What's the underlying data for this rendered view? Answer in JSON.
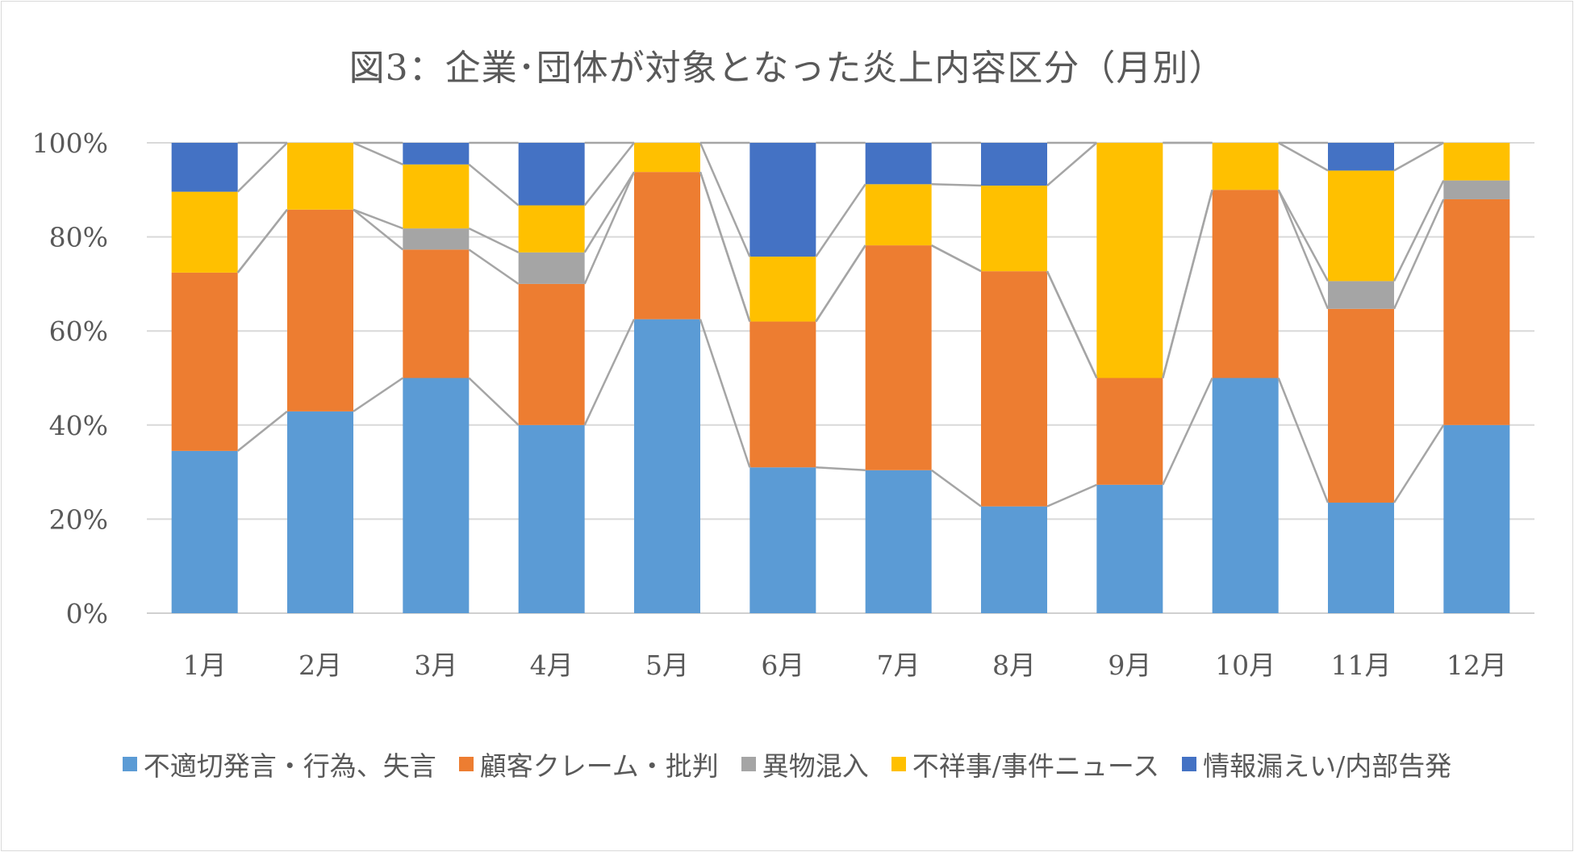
{
  "chart_data": {
    "type": "bar",
    "stacked": "percent",
    "title": "図3：企業･団体が対象となった炎上内容区分（月別）",
    "categories": [
      "1月",
      "2月",
      "3月",
      "4月",
      "5月",
      "6月",
      "7月",
      "8月",
      "9月",
      "10月",
      "11月",
      "12月"
    ],
    "series": [
      {
        "name": "不適切発言・行為、失言",
        "color": "#5B9BD5",
        "values": [
          34.5,
          42.9,
          50.0,
          40.0,
          62.5,
          31.0,
          30.4,
          22.7,
          27.3,
          50.0,
          23.5,
          40.0
        ]
      },
      {
        "name": "顧客クレーム・批判",
        "color": "#ED7D31",
        "values": [
          37.9,
          42.9,
          27.3,
          30.0,
          31.3,
          31.0,
          47.8,
          50.0,
          22.7,
          40.0,
          41.2,
          48.0
        ]
      },
      {
        "name": "異物混入",
        "color": "#A5A5A5",
        "values": [
          0.0,
          0.0,
          4.5,
          6.7,
          0.0,
          0.0,
          0.0,
          0.0,
          0.0,
          0.0,
          5.9,
          4.0
        ]
      },
      {
        "name": "不祥事/事件ニュース",
        "color": "#FFC000",
        "values": [
          17.2,
          14.2,
          13.6,
          10.0,
          6.2,
          13.8,
          13.0,
          18.2,
          50.0,
          10.0,
          23.5,
          8.0
        ]
      },
      {
        "name": "情報漏えい/内部告発",
        "color": "#4472C4",
        "values": [
          10.4,
          0.0,
          4.6,
          13.3,
          0.0,
          24.2,
          8.8,
          9.1,
          0.0,
          0.0,
          5.9,
          0.0
        ]
      }
    ],
    "ylim": [
      0,
      100
    ],
    "yticks": [
      "0%",
      "20%",
      "40%",
      "60%",
      "80%",
      "100%"
    ],
    "grid": true,
    "series_lines": true,
    "legend": "bottom",
    "xlabel": "",
    "ylabel": ""
  }
}
